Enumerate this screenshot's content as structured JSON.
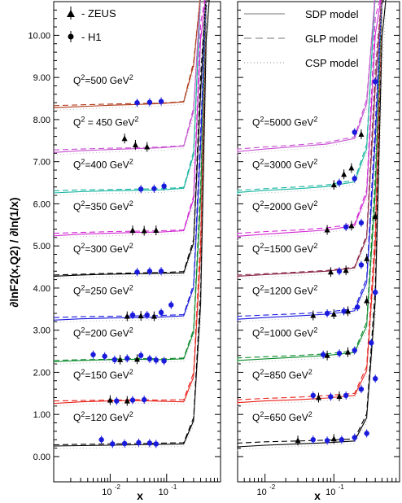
{
  "chart_data": {
    "type": "line",
    "ylabel": "∂lnF2(x,Q2) / ∂ln(1/x)",
    "xlabel": "x",
    "x_scale": "log",
    "xlim": [
      0.001,
      0.9
    ],
    "ylim": [
      -0.6,
      10.8
    ],
    "y_ticks": [
      "0.00",
      "1.00",
      "2.00",
      "3.00",
      "4.00",
      "5.00",
      "6.00",
      "7.00",
      "8.00",
      "9.00",
      "10.00"
    ],
    "y_tick_values": [
      0,
      1,
      2,
      3,
      4,
      5,
      6,
      7,
      8,
      9,
      10
    ],
    "x_tick_labels": [
      {
        "base": "10",
        "exp": "-2",
        "value": 0.01
      },
      {
        "base": "10",
        "exp": "-1",
        "value": 0.1
      }
    ],
    "legend_left": [
      {
        "marker": "triangle",
        "label": "- ZEUS"
      },
      {
        "marker": "circle",
        "label": "- H1"
      }
    ],
    "legend_right": [
      {
        "style": "solid",
        "label": "SDP model"
      },
      {
        "style": "dashed",
        "label": "GLP model"
      },
      {
        "style": "dotted",
        "label": "CSP model"
      }
    ],
    "label_prefix": "Q",
    "label_exp": "2",
    "label_unit": "GeV",
    "panels": [
      {
        "name": "left",
        "curves": [
          {
            "q2": "120",
            "label_sep": "=",
            "color": "#000000",
            "offset": 0.3,
            "solid": [
              0.25,
              0.26,
              0.27,
              0.28,
              0.29,
              0.3
            ],
            "dashed": [
              0.28,
              0.29,
              0.3,
              0.31,
              0.32,
              0.33
            ]
          },
          {
            "q2": "150",
            "label_sep": "=",
            "color": "#e8231b",
            "offset": 1.3,
            "solid": [
              1.26,
              1.3,
              1.32,
              1.33,
              1.31,
              1.3
            ],
            "dashed": [
              1.32,
              1.33,
              1.34,
              1.35,
              1.34,
              1.35
            ]
          },
          {
            "q2": "200",
            "label_sep": "=",
            "color": "#0a8a2a",
            "offset": 2.3,
            "solid": [
              2.25,
              2.28,
              2.3,
              2.31,
              2.3,
              2.32
            ],
            "dashed": [
              2.28,
              2.3,
              2.31,
              2.33,
              2.32,
              2.34
            ]
          },
          {
            "q2": "250",
            "label_sep": "=",
            "color": "#1a1adc",
            "offset": 3.3,
            "solid": [
              3.24,
              3.27,
              3.29,
              3.3,
              3.31,
              3.34
            ],
            "dashed": [
              3.3,
              3.32,
              3.33,
              3.34,
              3.35,
              3.37
            ]
          },
          {
            "q2": "300",
            "label_sep": "=",
            "color": "#000000",
            "offset": 4.3,
            "solid": [
              4.28,
              4.31,
              4.33,
              4.34,
              4.35,
              4.36
            ],
            "dashed": [
              4.31,
              4.33,
              4.35,
              4.36,
              4.37,
              4.39
            ]
          },
          {
            "q2": "350",
            "label_sep": "=",
            "color": "#d22ad2",
            "offset": 5.3,
            "solid": [
              5.24,
              5.28,
              5.3,
              5.32,
              5.33,
              5.36
            ],
            "dashed": [
              5.3,
              5.32,
              5.34,
              5.35,
              5.36,
              5.38
            ]
          },
          {
            "q2": "400",
            "label_sep": "=",
            "color": "#19b6a0",
            "offset": 6.3,
            "solid": [
              6.26,
              6.29,
              6.31,
              6.32,
              6.33,
              6.37
            ],
            "dashed": [
              6.31,
              6.33,
              6.34,
              6.35,
              6.36,
              6.39
            ]
          },
          {
            "q2": "450",
            "label_sep": " = ",
            "color": "#c74ed1",
            "offset": 7.3,
            "solid": [
              7.22,
              7.26,
              7.29,
              7.31,
              7.33,
              7.37
            ],
            "dashed": [
              7.28,
              7.3,
              7.32,
              7.33,
              7.35,
              7.38
            ]
          },
          {
            "q2": "500",
            "label_sep": "=",
            "color": "#b03a1a",
            "offset": 8.3,
            "solid": [
              8.28,
              8.31,
              8.34,
              8.36,
              8.38,
              8.42
            ],
            "dashed": [
              8.33,
              8.35,
              8.37,
              8.38,
              8.39,
              8.43
            ]
          }
        ],
        "h1_points": [
          [
            0.007,
            0.4
          ],
          [
            0.011,
            0.3
          ],
          [
            0.018,
            0.31
          ],
          [
            0.032,
            0.33
          ],
          [
            0.05,
            0.32
          ],
          [
            0.065,
            0.3
          ],
          [
            0.013,
            1.32
          ],
          [
            0.025,
            1.34
          ],
          [
            0.04,
            1.35
          ],
          [
            0.005,
            2.42
          ],
          [
            0.008,
            2.38
          ],
          [
            0.012,
            2.3
          ],
          [
            0.02,
            2.33
          ],
          [
            0.035,
            2.4
          ],
          [
            0.05,
            2.32
          ],
          [
            0.065,
            2.29
          ],
          [
            0.09,
            2.27
          ],
          [
            0.025,
            3.36
          ],
          [
            0.045,
            3.36
          ],
          [
            0.08,
            3.42
          ],
          [
            0.12,
            3.6
          ],
          [
            0.03,
            4.38
          ],
          [
            0.05,
            4.4
          ],
          [
            0.08,
            4.4
          ],
          [
            0.035,
            6.35
          ],
          [
            0.06,
            6.36
          ],
          [
            0.09,
            6.42
          ],
          [
            0.03,
            8.4
          ],
          [
            0.05,
            8.41
          ],
          [
            0.08,
            8.43
          ]
        ],
        "zeus_points": [
          [
            0.01,
            1.34
          ],
          [
            0.02,
            1.32
          ],
          [
            0.015,
            2.3
          ],
          [
            0.03,
            2.31
          ],
          [
            0.02,
            3.33
          ],
          [
            0.035,
            3.34
          ],
          [
            0.06,
            3.33
          ],
          [
            0.025,
            5.37
          ],
          [
            0.04,
            5.36
          ],
          [
            0.065,
            5.37
          ],
          [
            0.018,
            7.55
          ],
          [
            0.028,
            7.4
          ],
          [
            0.045,
            7.35
          ]
        ]
      },
      {
        "name": "right",
        "curves": [
          {
            "q2": "650",
            "label_sep": "=",
            "color": "#000000",
            "offset": 0.3,
            "solid": [
              0.2,
              0.23,
              0.27,
              0.3,
              0.33,
              0.37
            ],
            "dashed": [
              0.3,
              0.32,
              0.35,
              0.37,
              0.39,
              0.42
            ]
          },
          {
            "q2": "850",
            "label_sep": "=",
            "color": "#e8231b",
            "offset": 1.3,
            "solid": [
              1.24,
              1.28,
              1.32,
              1.35,
              1.39,
              1.45
            ],
            "dashed": [
              1.32,
              1.35,
              1.38,
              1.41,
              1.45,
              1.5
            ]
          },
          {
            "q2": "1000",
            "label_sep": "=",
            "color": "#0a8a2a",
            "offset": 2.3,
            "solid": [
              2.24,
              2.28,
              2.32,
              2.36,
              2.4,
              2.47
            ],
            "dashed": [
              2.31,
              2.34,
              2.37,
              2.4,
              2.44,
              2.51
            ]
          },
          {
            "q2": "1200",
            "label_sep": "=",
            "color": "#1a1adc",
            "offset": 3.3,
            "solid": [
              3.22,
              3.26,
              3.3,
              3.34,
              3.38,
              3.46
            ],
            "dashed": [
              3.3,
              3.33,
              3.36,
              3.39,
              3.43,
              3.51
            ]
          },
          {
            "q2": "1500",
            "label_sep": "=",
            "color": "#8b2a4a",
            "offset": 4.3,
            "solid": [
              4.24,
              4.28,
              4.32,
              4.36,
              4.4,
              4.48
            ],
            "dashed": [
              4.28,
              4.31,
              4.34,
              4.38,
              4.42,
              4.5
            ]
          },
          {
            "q2": "2000",
            "label_sep": "=",
            "color": "#d22ad2",
            "offset": 5.3,
            "solid": [
              5.18,
              5.23,
              5.28,
              5.33,
              5.38,
              5.48
            ],
            "dashed": [
              5.27,
              5.3,
              5.34,
              5.38,
              5.43,
              5.52
            ]
          },
          {
            "q2": "3000",
            "label_sep": "=",
            "color": "#19b6a0",
            "offset": 6.3,
            "solid": [
              6.22,
              6.27,
              6.32,
              6.36,
              6.41,
              6.52
            ],
            "dashed": [
              6.29,
              6.32,
              6.36,
              6.4,
              6.45,
              6.56
            ]
          },
          {
            "q2": "5000",
            "label_sep": "=",
            "color": "#c74ed1",
            "offset": 7.3,
            "solid": [
              7.19,
              7.24,
              7.3,
              7.36,
              7.42,
              7.55
            ],
            "dashed": [
              7.26,
              7.3,
              7.35,
              7.4,
              7.46,
              7.59
            ]
          }
        ],
        "h1_points": [
          [
            0.05,
            0.4
          ],
          [
            0.08,
            0.38
          ],
          [
            0.13,
            0.4
          ],
          [
            0.2,
            0.45
          ],
          [
            0.3,
            0.55
          ],
          [
            0.05,
            1.45
          ],
          [
            0.09,
            1.42
          ],
          [
            0.15,
            1.45
          ],
          [
            0.25,
            1.6
          ],
          [
            0.4,
            1.85
          ],
          [
            0.07,
            2.42
          ],
          [
            0.12,
            2.45
          ],
          [
            0.2,
            2.52
          ],
          [
            0.35,
            2.7
          ],
          [
            0.08,
            3.4
          ],
          [
            0.14,
            3.45
          ],
          [
            0.22,
            3.55
          ],
          [
            0.4,
            3.9
          ],
          [
            0.12,
            4.4
          ],
          [
            0.25,
            4.55
          ],
          [
            0.15,
            5.45
          ],
          [
            0.25,
            5.55
          ],
          [
            0.12,
            6.5
          ],
          [
            0.2,
            6.6
          ],
          [
            0.2,
            7.7
          ],
          [
            0.4,
            8.9
          ]
        ],
        "zeus_points": [
          [
            0.03,
            0.38
          ],
          [
            0.1,
            0.42
          ],
          [
            0.06,
            1.4
          ],
          [
            0.12,
            1.43
          ],
          [
            0.08,
            2.4
          ],
          [
            0.16,
            2.48
          ],
          [
            0.05,
            3.35
          ],
          [
            0.1,
            3.38
          ],
          [
            0.16,
            3.45
          ],
          [
            0.3,
            3.7
          ],
          [
            0.09,
            4.38
          ],
          [
            0.15,
            4.42
          ],
          [
            0.3,
            4.7
          ],
          [
            0.08,
            5.38
          ],
          [
            0.18,
            5.48
          ],
          [
            0.4,
            5.7
          ],
          [
            0.1,
            6.45
          ],
          [
            0.14,
            6.7
          ],
          [
            0.18,
            6.85
          ],
          [
            0.25,
            7.65
          ]
        ]
      }
    ]
  }
}
